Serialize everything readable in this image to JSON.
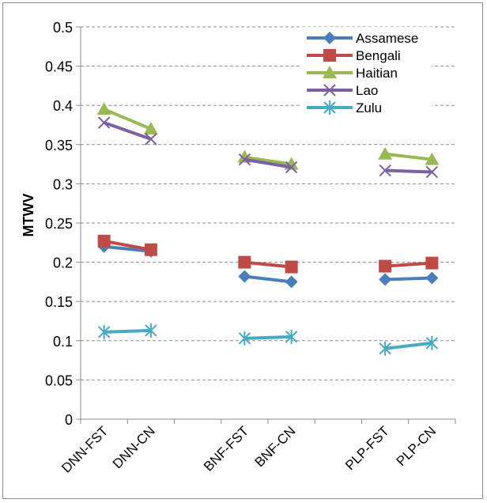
{
  "chart_data": {
    "type": "line",
    "title": "",
    "xlabel": "",
    "ylabel": "MTWV",
    "ylim": [
      0,
      0.5
    ],
    "yticks": [
      0,
      0.05,
      0.1,
      0.15,
      0.2,
      0.25,
      0.3,
      0.35,
      0.4,
      0.45,
      0.5
    ],
    "ytick_labels": [
      "0",
      "0.05",
      "0.1",
      "0.15",
      "0.2",
      "0.25",
      "0.3",
      "0.35",
      "0.4",
      "0.45",
      "0.5"
    ],
    "categories": [
      "DNN-FST",
      "DNN-CN",
      "",
      "BNF-FST",
      "BNF-CN",
      "",
      "PLP-FST",
      "PLP-CN"
    ],
    "grid": true,
    "legend_position": "top-right",
    "series": [
      {
        "name": "Assamese",
        "color": "#4a7ebb",
        "marker": "diamond",
        "values": [
          0.22,
          0.214,
          null,
          0.182,
          0.175,
          null,
          0.178,
          0.18
        ]
      },
      {
        "name": "Bengali",
        "color": "#be4b48",
        "marker": "square",
        "values": [
          0.227,
          0.216,
          null,
          0.2,
          0.194,
          null,
          0.195,
          0.199
        ]
      },
      {
        "name": "Haitian",
        "color": "#98b954",
        "marker": "triangle",
        "values": [
          0.395,
          0.37,
          null,
          0.334,
          0.325,
          null,
          0.338,
          0.331
        ]
      },
      {
        "name": "Lao",
        "color": "#7d60a0",
        "marker": "x",
        "values": [
          0.378,
          0.357,
          null,
          0.331,
          0.321,
          null,
          0.317,
          0.315
        ]
      },
      {
        "name": "Zulu",
        "color": "#46aac5",
        "marker": "star",
        "values": [
          0.111,
          0.113,
          null,
          0.103,
          0.105,
          null,
          0.09,
          0.097
        ]
      }
    ]
  }
}
